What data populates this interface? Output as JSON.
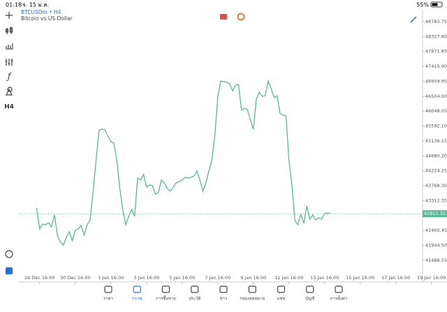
{
  "status_bar": {
    "time": "01:18",
    "date": "จ. 15 ม.ค.",
    "battery": "55%"
  },
  "toolbar": {
    "timeframe": "H4"
  },
  "chart_data": {
    "type": "line",
    "title": "BTCUSDm • H4",
    "subtitle": "Bitcoin vs US Dollar",
    "color": "#5ab896",
    "values": [
      43088,
      42448,
      42598,
      42576,
      42640,
      42512,
      42875,
      42235,
      42043,
      41958,
      42192,
      42363,
      42086,
      42406,
      42448,
      42555,
      42256,
      42576,
      42726,
      43579,
      44539,
      45456,
      45499,
      45477,
      45285,
      45115,
      45072,
      44539,
      43686,
      43046,
      42576,
      42832,
      43046,
      42832,
      44006,
      43942,
      44112,
      43728,
      43792,
      43771,
      43515,
      43558,
      43942,
      43856,
      43686,
      43600,
      43728,
      43856,
      43899,
      43942,
      44027,
      44006,
      44027,
      44070,
      44219,
      43942,
      43600,
      43856,
      44219,
      44539,
      45285,
      46459,
      46971,
      46949,
      46928,
      46885,
      46672,
      46843,
      46864,
      46075,
      46139,
      46096,
      45776,
      45499,
      46416,
      46629,
      46501,
      46523,
      46971,
      46736,
      46459,
      46523,
      45968,
      45925,
      45904,
      44539,
      43792,
      42704,
      42576,
      42896,
      42619,
      43152,
      42747,
      42875,
      42726,
      42790,
      42747,
      42918,
      42939,
      42918
    ],
    "last_price": 42912.31,
    "xlim": [
      -6,
      138
    ],
    "xticks": [
      {
        "value": 1,
        "label": "28 Dec 16:00"
      },
      {
        "value": 13,
        "label": "30 Dec 16:00"
      },
      {
        "value": 25,
        "label": "1 Jan 16:00"
      },
      {
        "value": 37,
        "label": "3 Jan 16:00"
      },
      {
        "value": 49,
        "label": "5 Jan 16:00"
      },
      {
        "value": 61,
        "label": "7 Jan 16:00"
      },
      {
        "value": 73,
        "label": "9 Jan 16:00"
      },
      {
        "value": 85,
        "label": "11 Jan 16:00"
      },
      {
        "value": 97,
        "label": "13 Jan 16:00"
      },
      {
        "value": 109,
        "label": "15 Jan 16:00"
      },
      {
        "value": 121,
        "label": "17 Jan 16:00"
      },
      {
        "value": 133,
        "label": "19 Jan 16:00"
      }
    ],
    "ylim": [
      41083,
      49146
    ],
    "yticks": [
      48783.75,
      {
        "value": 48327.8,
        "label": "48327.80"
      },
      47871.85,
      {
        "value": 47415.9,
        "label": "47415.90"
      },
      46959.95,
      {
        "value": 46504,
        "label": "46504.00"
      },
      46048.05,
      {
        "value": 45592.1,
        "label": "45592.10"
      },
      45136.15,
      {
        "value": 44680.2,
        "label": "44680.20"
      },
      44224.25,
      {
        "value": 43768.3,
        "label": "43768.30"
      },
      43312.35,
      42400.45,
      {
        "value": 41944.5,
        "label": "41944.50"
      },
      41488.55
    ]
  },
  "tabs": [
    "ราคา",
    "กราฟ",
    "การซื้อขาย",
    "ประวัติ",
    "ข่าว",
    "กล่องจดหมาย",
    "แชท",
    "บัญชี",
    "การตั้งค่า"
  ],
  "active_tab": 1
}
